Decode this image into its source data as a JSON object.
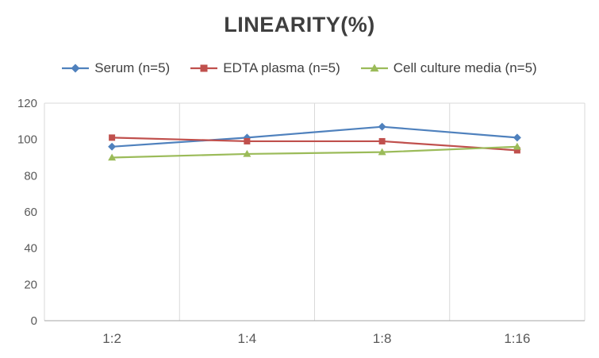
{
  "chart_data": {
    "type": "line",
    "title": "LINEARITY(%)",
    "categories": [
      "1:2",
      "1:4",
      "1:8",
      "1:16"
    ],
    "xlabel": "",
    "ylabel": "",
    "ylim": [
      0,
      120
    ],
    "yticks": [
      0,
      20,
      40,
      60,
      80,
      100,
      120
    ],
    "grid": "vertical-major",
    "legend_position": "top",
    "series": [
      {
        "name": "Serum (n=5)",
        "marker": "diamond",
        "color": "#4F81BD",
        "values": [
          96,
          101,
          107,
          101
        ]
      },
      {
        "name": "EDTA plasma (n=5)",
        "marker": "square",
        "color": "#C0504D",
        "values": [
          101,
          99,
          99,
          94
        ]
      },
      {
        "name": "Cell culture media (n=5)",
        "marker": "triangle",
        "color": "#9BBB59",
        "values": [
          90,
          92,
          93,
          96
        ]
      }
    ]
  },
  "colors": {
    "background": "#FFFFFF",
    "gridline": "#D9D9D9",
    "axis": "#A6A6A6",
    "tick_text": "#595959",
    "title_text": "#3F3F3F",
    "legend_text": "#404040"
  }
}
